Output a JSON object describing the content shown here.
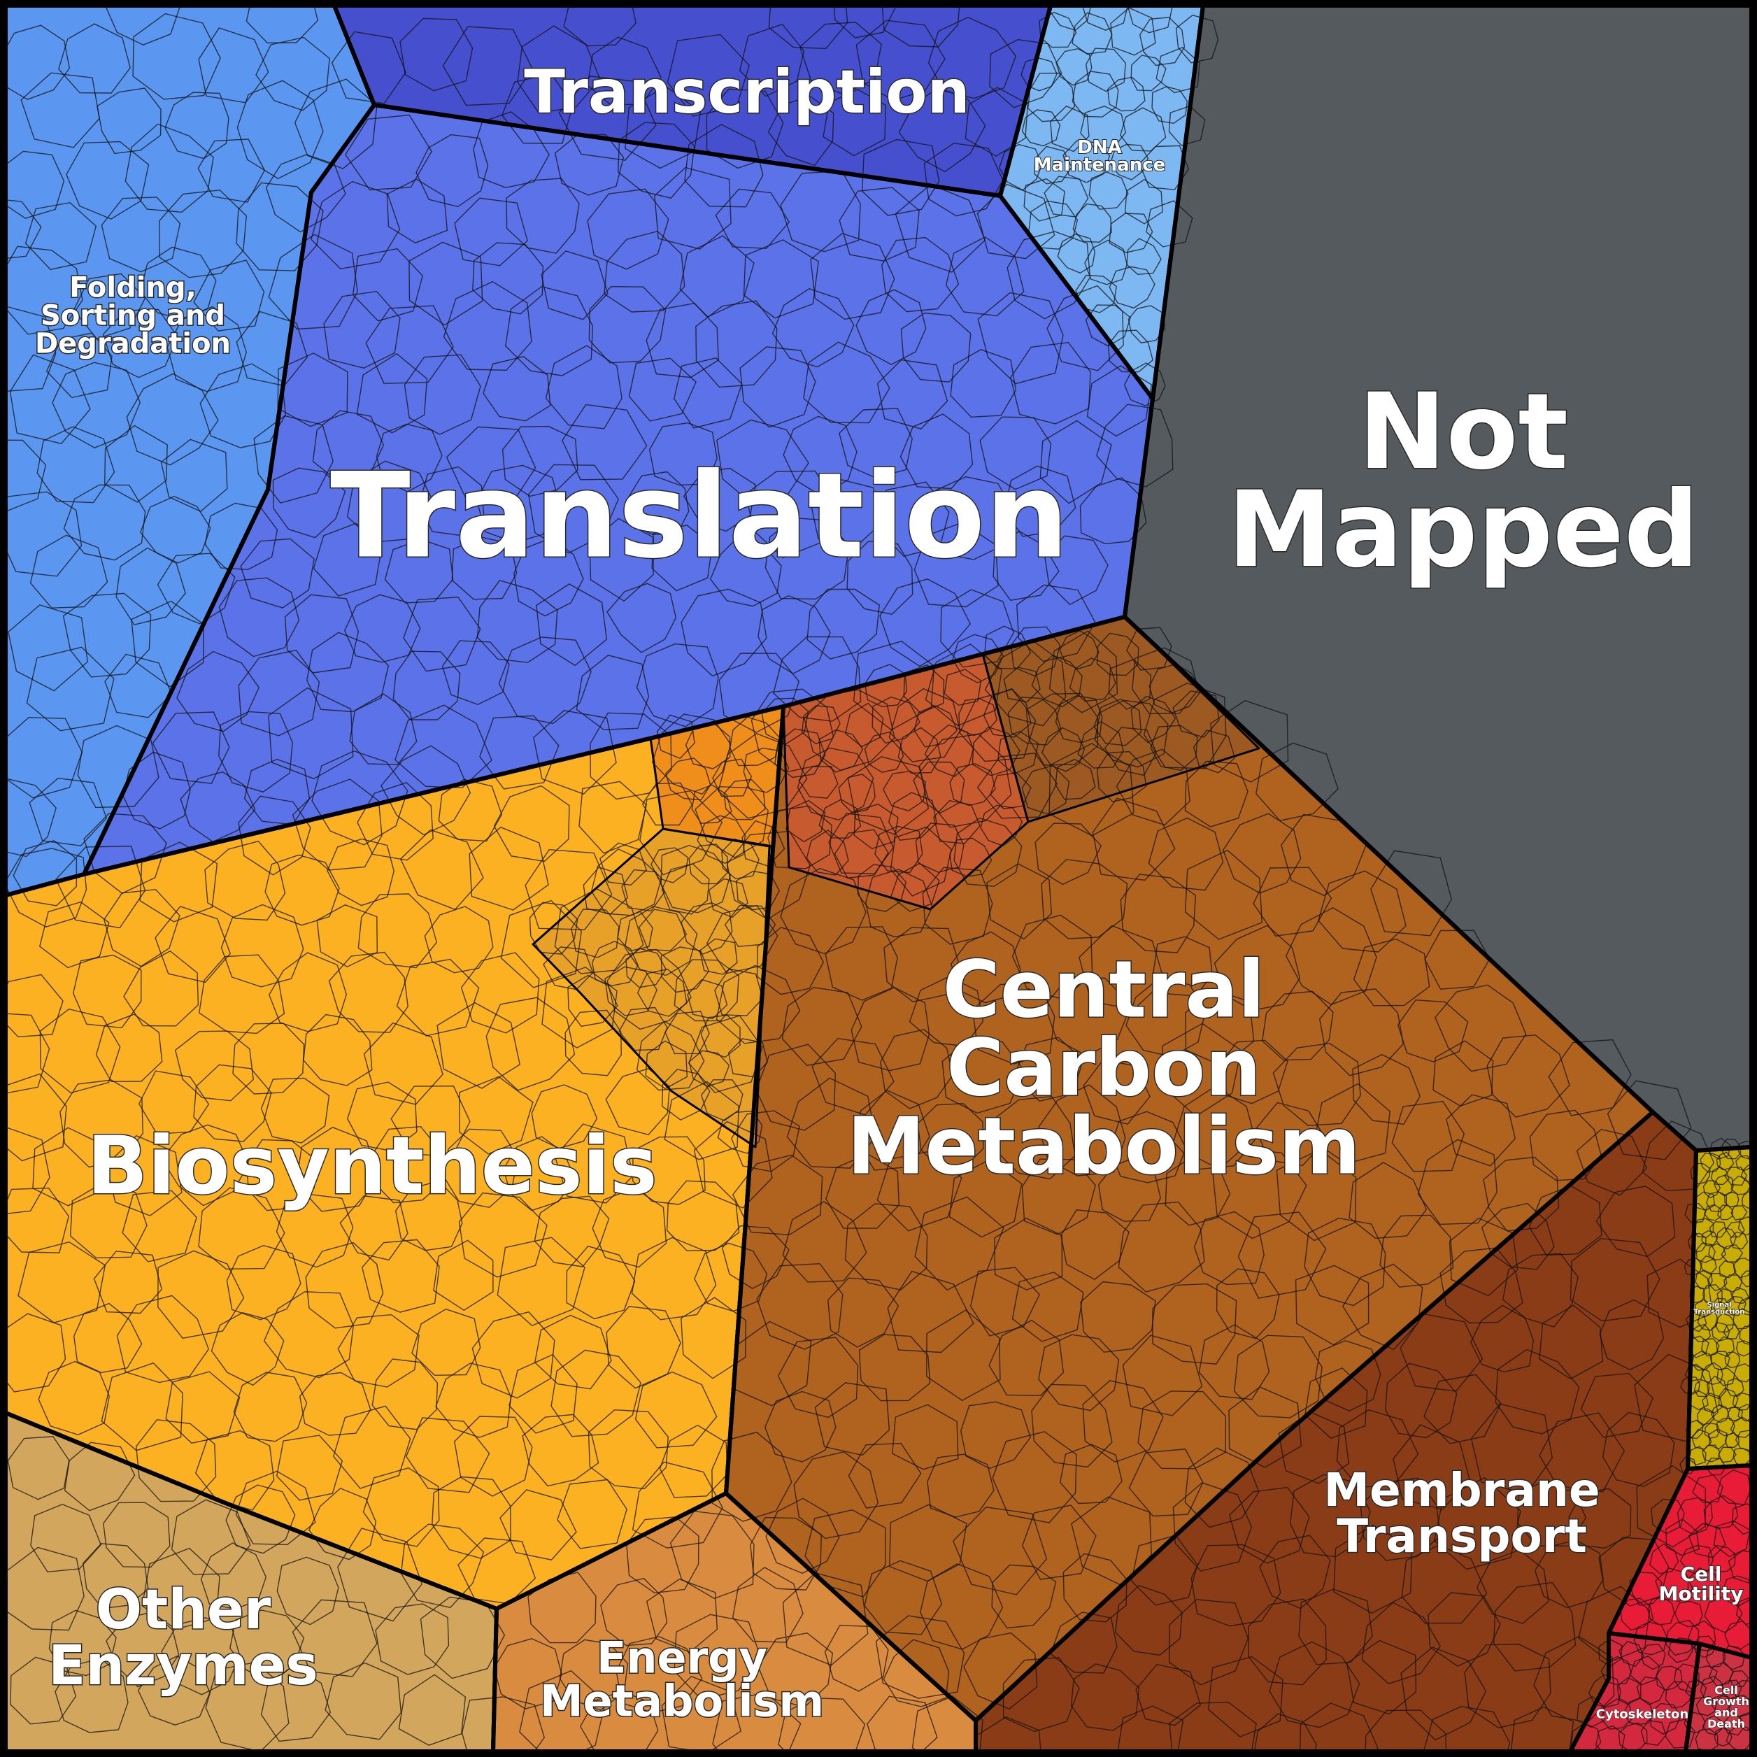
{
  "regions": [
    {
      "id": "translation",
      "label": [
        "Translation"
      ],
      "color": "#5b72e8"
    },
    {
      "id": "transcription",
      "label": [
        "Transcription"
      ],
      "color": "#4650cf"
    },
    {
      "id": "folding",
      "label": [
        "Folding,",
        "Sorting and",
        "Degradation"
      ],
      "color": "#5b97f0"
    },
    {
      "id": "dna",
      "label": [
        "DNA",
        "Maintenance"
      ],
      "color": "#7db8f2"
    },
    {
      "id": "not_mapped",
      "label": [
        "Not",
        "Mapped"
      ],
      "color": "#545a5e"
    },
    {
      "id": "central",
      "label": [
        "Central",
        "Carbon",
        "Metabolism"
      ],
      "color": "#b0621f"
    },
    {
      "id": "biosynthesis",
      "label": [
        "Biosynthesis"
      ],
      "color": "#fbb122"
    },
    {
      "id": "other_enzymes",
      "label": [
        "Other",
        "Enzymes"
      ],
      "color": "#d3a65e"
    },
    {
      "id": "energy",
      "label": [
        "Energy",
        "Metabolism"
      ],
      "color": "#d98c40"
    },
    {
      "id": "membrane",
      "label": [
        "Membrane",
        "Transport"
      ],
      "color": "#8a3c17"
    },
    {
      "id": "signal",
      "label": [
        "Signal",
        "Transduction"
      ],
      "color": "#c9ad05"
    },
    {
      "id": "cell_motility",
      "label": [
        "Cell",
        "Motility"
      ],
      "color": "#e81c36"
    },
    {
      "id": "cytoskeleton",
      "label": [
        "Cytoskeleton"
      ],
      "color": "#d4283e"
    },
    {
      "id": "cell_growth",
      "label": [
        "Cell",
        "Growth",
        "and",
        "Death"
      ],
      "color": "#cc3242"
    }
  ],
  "subregions": [
    {
      "color": "#c75a2e"
    },
    {
      "color": "#e7a128"
    },
    {
      "color": "#ef8e1a"
    },
    {
      "color": "#9c5a22"
    }
  ]
}
